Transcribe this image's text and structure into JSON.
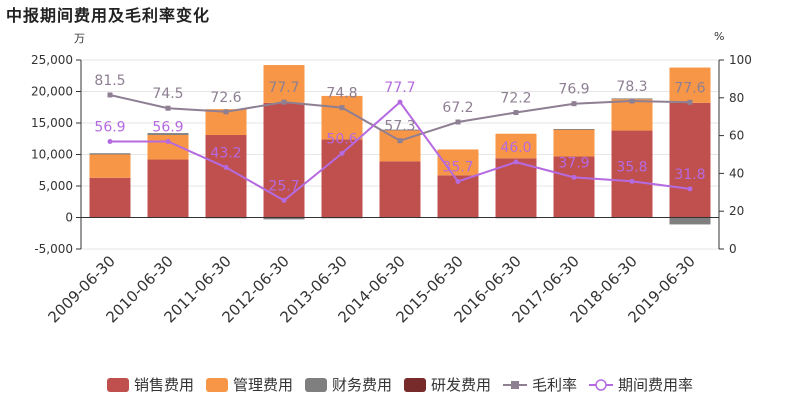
{
  "chart_data": {
    "type": "bar",
    "title": "中报期间费用及毛利率变化",
    "left_unit": "万",
    "right_unit": "%",
    "categories": [
      "2009-06-30",
      "2010-06-30",
      "2011-06-30",
      "2012-06-30",
      "2013-06-30",
      "2014-06-30",
      "2015-06-30",
      "2016-06-30",
      "2017-06-30",
      "2018-06-30",
      "2019-06-30"
    ],
    "y_left": {
      "min": -5000,
      "max": 25000,
      "ticks": [
        "-5,000",
        "0",
        "5,000",
        "10,000",
        "15,000",
        "20,000",
        "25,000"
      ]
    },
    "y_right": {
      "min": 0,
      "max": 100,
      "ticks": [
        "0",
        "20",
        "40",
        "60",
        "80",
        "100"
      ]
    },
    "series": [
      {
        "name": "销售费用",
        "type": "bar",
        "color": "#c0504d",
        "values": [
          6300,
          9200,
          13100,
          18200,
          12400,
          8900,
          6700,
          9400,
          9700,
          13800,
          18200
        ]
      },
      {
        "name": "管理费用",
        "type": "bar",
        "color": "#f79646",
        "values": [
          3700,
          3900,
          4100,
          6000,
          6900,
          5000,
          4100,
          3900,
          4300,
          5000,
          5600
        ]
      },
      {
        "name": "财务费用",
        "type": "bar",
        "color": "#7f7f7f",
        "values": [
          200,
          300,
          -100,
          -300,
          -100,
          50,
          -100,
          -100,
          50,
          100,
          -1100
        ]
      },
      {
        "name": "研发费用",
        "type": "bar",
        "color": "#772b2b",
        "values": [
          0,
          0,
          0,
          0,
          0,
          0,
          0,
          0,
          0,
          0,
          0
        ]
      },
      {
        "name": "毛利率",
        "type": "line",
        "color": "#8e7f93",
        "values": [
          81.5,
          74.5,
          72.6,
          77.7,
          74.8,
          57.3,
          67.2,
          72.2,
          76.9,
          78.3,
          77.6
        ]
      },
      {
        "name": "期间费用率",
        "type": "line",
        "color": "#b56ae0",
        "values": [
          56.9,
          56.9,
          43.2,
          25.7,
          50.6,
          77.7,
          35.7,
          46.0,
          37.9,
          35.8,
          31.8
        ]
      }
    ],
    "gross_margin_labels": [
      "81.5",
      "74.5",
      "72.6",
      "77.7",
      "74.8",
      "57.3",
      "67.2",
      "72.2",
      "76.9",
      "78.3",
      "77.6"
    ],
    "expense_ratio_labels": [
      "56.9",
      "56.9",
      "43.2",
      "25.7",
      "50.6",
      "77.7",
      "35.7",
      "46.0",
      "37.9",
      "35.8",
      "31.8"
    ],
    "legend_position": "bottom",
    "grid": true
  }
}
